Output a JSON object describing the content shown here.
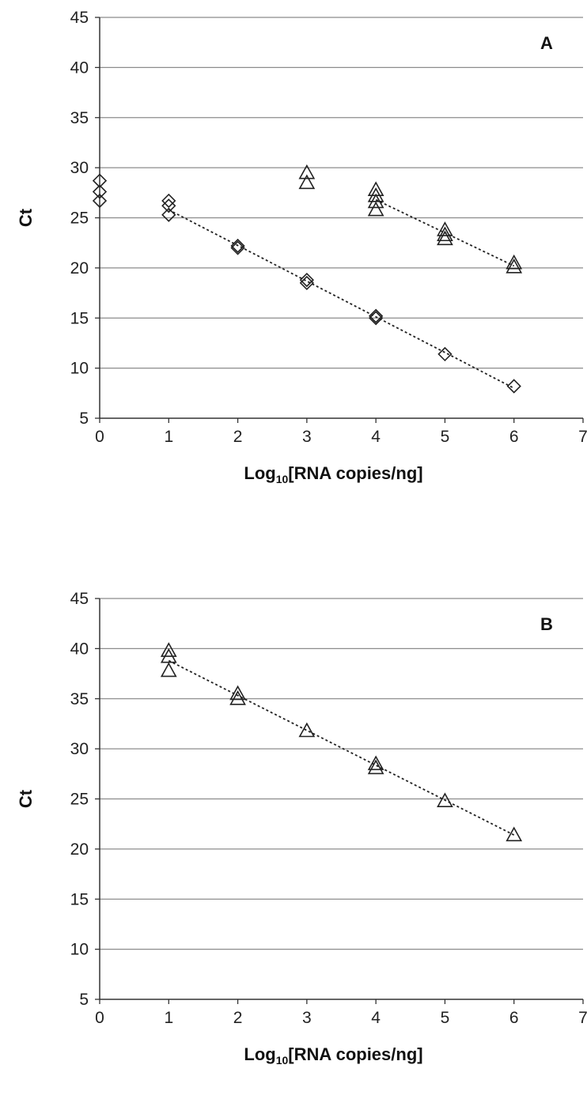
{
  "chart_data": [
    {
      "type": "scatter",
      "panel_label": "A",
      "xlabel_main": "Log",
      "xlabel_sub": "10",
      "xlabel_rest": "[RNA copies/ng]",
      "ylabel": "Ct",
      "xlim": [
        0,
        7
      ],
      "ylim": [
        5,
        45
      ],
      "xticks": [
        "0",
        "1",
        "2",
        "3",
        "4",
        "5",
        "6",
        "7"
      ],
      "yticks": [
        "5",
        "10",
        "15",
        "20",
        "25",
        "30",
        "35",
        "40",
        "45"
      ],
      "grid": "horizontal",
      "series": [
        {
          "marker": "diamond",
          "points": [
            {
              "x": 0,
              "y": 28.7
            },
            {
              "x": 0,
              "y": 27.6
            },
            {
              "x": 0,
              "y": 26.7
            },
            {
              "x": 1,
              "y": 26.7
            },
            {
              "x": 1,
              "y": 26.2
            },
            {
              "x": 1,
              "y": 25.3
            },
            {
              "x": 2,
              "y": 22.2
            },
            {
              "x": 2,
              "y": 22.0
            },
            {
              "x": 3,
              "y": 18.8
            },
            {
              "x": 3,
              "y": 18.5
            },
            {
              "x": 4,
              "y": 15.2
            },
            {
              "x": 4,
              "y": 15.0
            },
            {
              "x": 5,
              "y": 11.4
            },
            {
              "x": 6,
              "y": 8.2
            }
          ],
          "trendline": {
            "x": [
              1,
              6
            ],
            "y": [
              25.8,
              8.0
            ]
          }
        },
        {
          "marker": "triangle",
          "points": [
            {
              "x": 3,
              "y": 29.5
            },
            {
              "x": 3,
              "y": 28.5
            },
            {
              "x": 4,
              "y": 27.8
            },
            {
              "x": 4,
              "y": 27.2
            },
            {
              "x": 4,
              "y": 26.6
            },
            {
              "x": 4,
              "y": 25.8
            },
            {
              "x": 5,
              "y": 23.8
            },
            {
              "x": 5,
              "y": 23.3
            },
            {
              "x": 5,
              "y": 22.9
            },
            {
              "x": 6,
              "y": 20.5
            },
            {
              "x": 6,
              "y": 20.1
            }
          ],
          "trendline": {
            "x": [
              4,
              6
            ],
            "y": [
              26.8,
              20.2
            ]
          }
        }
      ]
    },
    {
      "type": "scatter",
      "panel_label": "B",
      "xlabel_main": "Log",
      "xlabel_sub": "10",
      "xlabel_rest": "[RNA copies/ng]",
      "ylabel": "Ct",
      "xlim": [
        0,
        7
      ],
      "ylim": [
        5,
        45
      ],
      "xticks": [
        "0",
        "1",
        "2",
        "3",
        "4",
        "5",
        "6",
        "7"
      ],
      "yticks": [
        "5",
        "10",
        "15",
        "20",
        "25",
        "30",
        "35",
        "40",
        "45"
      ],
      "grid": "horizontal",
      "series": [
        {
          "marker": "triangle",
          "points": [
            {
              "x": 1,
              "y": 39.8
            },
            {
              "x": 1,
              "y": 39.2
            },
            {
              "x": 1,
              "y": 37.8
            },
            {
              "x": 2,
              "y": 35.5
            },
            {
              "x": 2,
              "y": 35.0
            },
            {
              "x": 3,
              "y": 31.8
            },
            {
              "x": 4,
              "y": 28.5
            },
            {
              "x": 4,
              "y": 28.1
            },
            {
              "x": 5,
              "y": 24.8
            },
            {
              "x": 6,
              "y": 21.4
            }
          ],
          "trendline": {
            "x": [
              1,
              6
            ],
            "y": [
              38.8,
              21.4
            ]
          }
        }
      ]
    }
  ]
}
